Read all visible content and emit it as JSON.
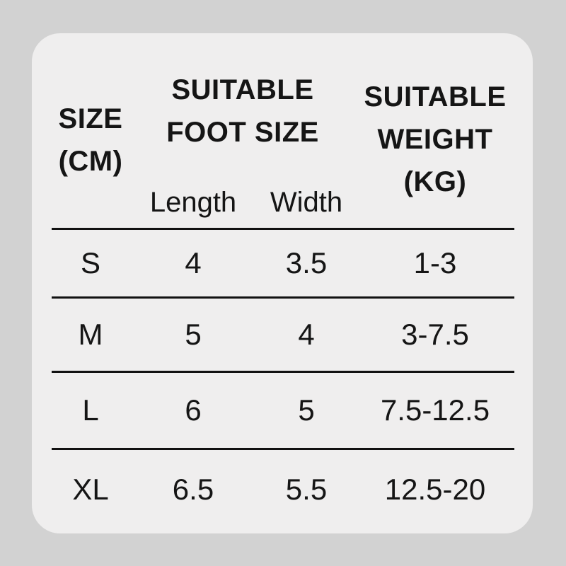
{
  "page": {
    "background_color": "#d2d2d2",
    "card_color": "#efeeee",
    "text_color": "#151515",
    "line_color": "#111111"
  },
  "table": {
    "header": {
      "size_lines": [
        "SIZE",
        "(CM)"
      ],
      "foot_group_lines": [
        "SUITABLE",
        "FOOT SIZE"
      ],
      "weight_lines": [
        "SUITABLE",
        "WEIGHT",
        "(KG)"
      ],
      "sub_columns": [
        "Length",
        "Width"
      ]
    },
    "rows": [
      {
        "size": "S",
        "length": "4",
        "width": "3.5",
        "weight": "1-3"
      },
      {
        "size": "M",
        "length": "5",
        "width": "4",
        "weight": "3-7.5"
      },
      {
        "size": "L",
        "length": "6",
        "width": "5",
        "weight": "7.5-12.5"
      },
      {
        "size": "XL",
        "length": "6.5",
        "width": "5.5",
        "weight": "12.5-20"
      }
    ]
  },
  "chart_data": {
    "type": "table",
    "title": "",
    "columns": [
      "SIZE (CM)",
      "SUITABLE FOOT SIZE - Length",
      "SUITABLE FOOT SIZE - Width",
      "SUITABLE WEIGHT (KG)"
    ],
    "rows": [
      [
        "S",
        4,
        3.5,
        "1-3"
      ],
      [
        "M",
        5,
        4,
        "3-7.5"
      ],
      [
        "L",
        6,
        5,
        "7.5-12.5"
      ],
      [
        "XL",
        6.5,
        5.5,
        "12.5-20"
      ]
    ]
  }
}
